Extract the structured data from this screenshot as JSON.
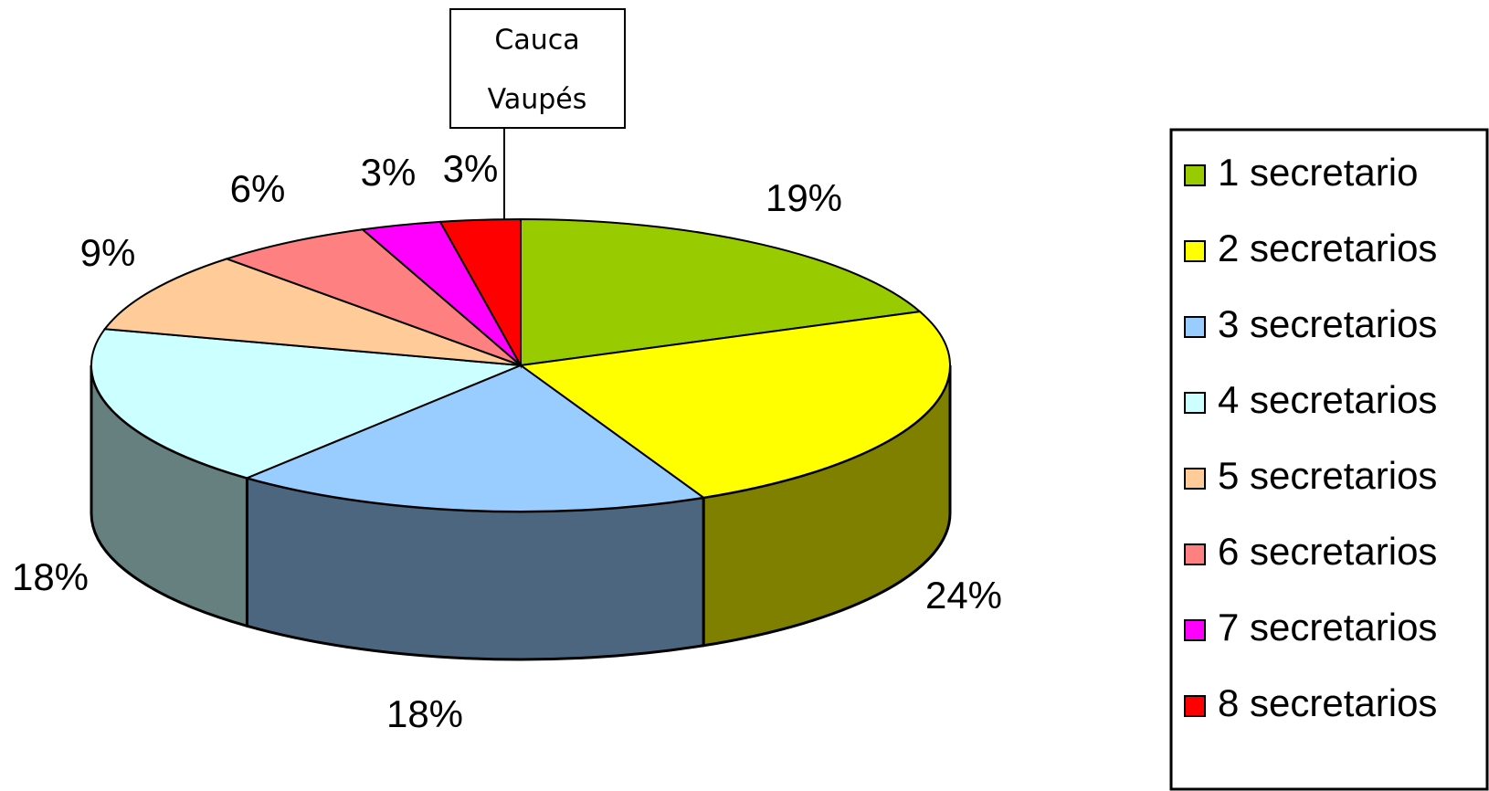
{
  "chart_data": {
    "type": "pie3d",
    "categories": [
      "1 secretario",
      "2 secretarios",
      "3 secretarios",
      "4 secretarios",
      "5 secretarios",
      "6 secretarios",
      "7 secretarios",
      "8 secretarios"
    ],
    "values": [
      19,
      24,
      18,
      18,
      9,
      6,
      3,
      3
    ],
    "value_labels": [
      "19%",
      "24%",
      "18%",
      "18%",
      "9%",
      "6%",
      "3%",
      "3%"
    ],
    "colors": [
      "#99cc00",
      "#ffff00",
      "#99ccff",
      "#ccffff",
      "#ffcc99",
      "#ff8080",
      "#ff00ff",
      "#ff0000"
    ],
    "annotation": [
      "Cauca",
      "Vaupés"
    ],
    "legend": "right"
  }
}
